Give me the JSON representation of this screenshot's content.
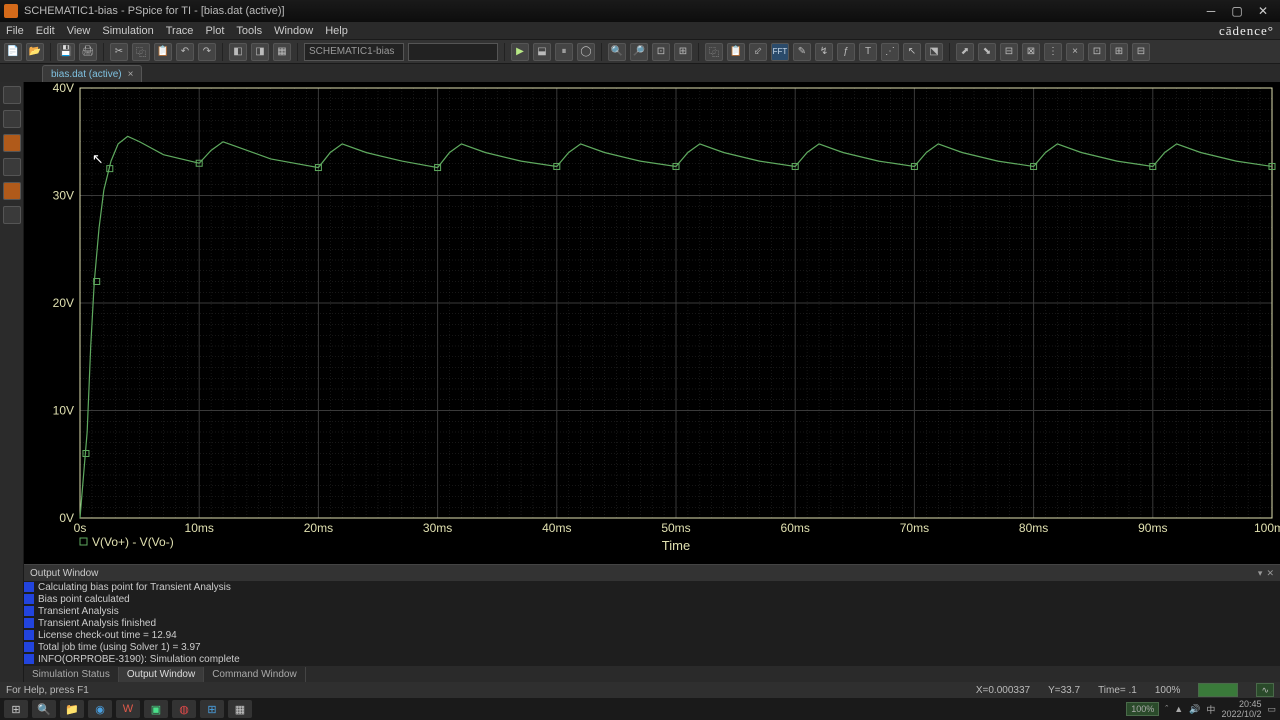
{
  "title": "SCHEMATIC1-bias - PSpice for TI - [bias.dat (active)]",
  "menus": [
    "File",
    "Edit",
    "View",
    "Simulation",
    "Trace",
    "Plot",
    "Tools",
    "Window",
    "Help"
  ],
  "brand": "cādence°",
  "toolbar_drop1": "SCHEMATIC1-bias",
  "tab": {
    "label": "bias.dat (active)",
    "close": "×"
  },
  "chart": {
    "bg": "#000000",
    "grid_color": "#3a3a3a",
    "axis_color": "#e0e0b0",
    "trace_color": "#5faa5f",
    "marker_color": "#5faa5f",
    "xlabel": "Time",
    "ylabel_ticks": [
      "0V",
      "10V",
      "20V",
      "30V",
      "40V"
    ],
    "yvals": [
      0,
      10,
      20,
      30,
      40
    ],
    "xlabel_ticks": [
      "0s",
      "10ms",
      "20ms",
      "30ms",
      "40ms",
      "50ms",
      "60ms",
      "70ms",
      "80ms",
      "90ms",
      "100ms"
    ],
    "xvals": [
      0,
      10,
      20,
      30,
      40,
      50,
      60,
      70,
      80,
      90,
      100
    ],
    "legend": "V(Vo+) - V(Vo-)",
    "trace": [
      [
        0,
        0
      ],
      [
        0.6,
        8
      ],
      [
        0.9,
        16
      ],
      [
        1.2,
        22
      ],
      [
        1.6,
        27
      ],
      [
        2.0,
        30.5
      ],
      [
        2.6,
        33.2
      ],
      [
        3.2,
        34.8
      ],
      [
        4.0,
        35.5
      ],
      [
        5.0,
        35.0
      ],
      [
        7.0,
        33.8
      ],
      [
        10.0,
        33.0
      ],
      [
        11.0,
        34.2
      ],
      [
        12.0,
        35.0
      ],
      [
        13.5,
        34.4
      ],
      [
        16.0,
        33.4
      ],
      [
        20.0,
        32.6
      ],
      [
        21.0,
        34.0
      ],
      [
        22.0,
        34.8
      ],
      [
        24.0,
        34.0
      ],
      [
        27.0,
        33.2
      ],
      [
        30.0,
        32.6
      ],
      [
        31.0,
        34.0
      ],
      [
        32.0,
        34.8
      ],
      [
        34.0,
        34.0
      ],
      [
        37.0,
        33.2
      ],
      [
        40.0,
        32.7
      ],
      [
        41.0,
        34.0
      ],
      [
        42.0,
        34.8
      ],
      [
        44.0,
        34.0
      ],
      [
        47.0,
        33.2
      ],
      [
        50.0,
        32.7
      ],
      [
        51.0,
        34.0
      ],
      [
        52.0,
        34.8
      ],
      [
        54.0,
        34.0
      ],
      [
        57.0,
        33.2
      ],
      [
        60.0,
        32.7
      ],
      [
        61.0,
        34.0
      ],
      [
        62.0,
        34.8
      ],
      [
        64.0,
        34.0
      ],
      [
        67.0,
        33.2
      ],
      [
        70.0,
        32.7
      ],
      [
        71.0,
        34.0
      ],
      [
        72.0,
        34.8
      ],
      [
        74.0,
        34.0
      ],
      [
        77.0,
        33.2
      ],
      [
        80.0,
        32.7
      ],
      [
        81.0,
        34.0
      ],
      [
        82.0,
        34.8
      ],
      [
        84.0,
        34.0
      ],
      [
        87.0,
        33.2
      ],
      [
        90.0,
        32.7
      ],
      [
        91.0,
        34.0
      ],
      [
        92.0,
        34.8
      ],
      [
        94.0,
        34.0
      ],
      [
        97.0,
        33.2
      ],
      [
        100.0,
        32.7
      ]
    ],
    "markers": [
      [
        0.5,
        6
      ],
      [
        1.4,
        22
      ],
      [
        2.5,
        32.5
      ],
      [
        10,
        33.0
      ],
      [
        20,
        32.6
      ],
      [
        30,
        32.6
      ],
      [
        40,
        32.7
      ],
      [
        50,
        32.7
      ],
      [
        60,
        32.7
      ],
      [
        70,
        32.7
      ],
      [
        80,
        32.7
      ],
      [
        90,
        32.7
      ],
      [
        100,
        32.7
      ]
    ]
  },
  "output": {
    "title": "Output Window",
    "lines": [
      "Calculating bias point for Transient Analysis",
      "Bias point calculated",
      "Transient Analysis",
      "Transient Analysis finished",
      "License check-out time          =        12.94",
      "Total job time (using Solver 1)  =         3.97",
      "INFO(ORPROBE-3190): Simulation complete"
    ],
    "tabs": [
      "Simulation Status",
      "Output Window",
      "Command Window"
    ],
    "active_tab": 1
  },
  "status": {
    "hint": "For Help, press F1",
    "x": "X=0.000337",
    "y": "Y=33.7",
    "time": "Time= .1",
    "zoom": "100%"
  },
  "tray": {
    "zoom": "100%",
    "time": "20:45",
    "date": "2022/10/2"
  }
}
